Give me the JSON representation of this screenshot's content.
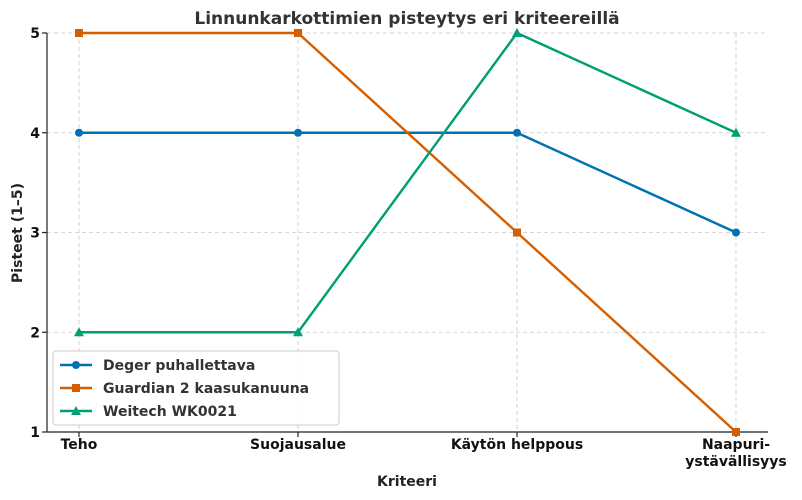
{
  "chart_data": {
    "type": "line",
    "title": "Linnunkarkottimien pisteytys eri kriteereillä",
    "xlabel": "Kriteeri",
    "ylabel": "Pisteet (1–5)",
    "categories": [
      "Teho",
      "Suojausalue",
      "Käytön helppous",
      "Naapuri-\nystävällisyys"
    ],
    "ylim": [
      1,
      5
    ],
    "yticks": [
      1,
      2,
      3,
      4,
      5
    ],
    "grid": true,
    "legend_position": "lower-left",
    "series": [
      {
        "name": "Deger puhallettava",
        "values": [
          4,
          4,
          4,
          3
        ],
        "color": "#0072b2",
        "marker": "circle"
      },
      {
        "name": "Guardian 2 kaasukanuuna",
        "values": [
          5,
          5,
          3,
          1
        ],
        "color": "#d55e00",
        "marker": "square"
      },
      {
        "name": "Weitech WK0021",
        "values": [
          2,
          2,
          5,
          4
        ],
        "color": "#009e73",
        "marker": "triangle"
      }
    ]
  }
}
